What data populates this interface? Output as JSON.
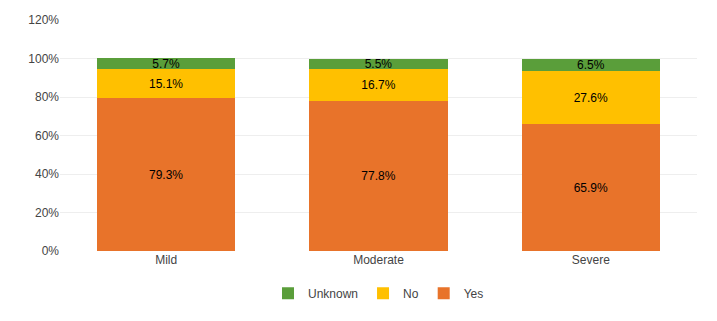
{
  "chart_data": {
    "type": "bar",
    "categories": [
      "Mild",
      "Moderate",
      "Severe"
    ],
    "series": [
      {
        "name": "Yes",
        "color": "#E8732A",
        "values": [
          79.3,
          77.8,
          65.9
        ],
        "value_labels": [
          "79.3%",
          "77.8%",
          "65.9%"
        ]
      },
      {
        "name": "No",
        "color": "#FFC000",
        "values": [
          15.1,
          16.7,
          27.6
        ],
        "value_labels": [
          "15.1%",
          "16.7%",
          "27.6%"
        ]
      },
      {
        "name": "Unknown",
        "color": "#5A9E3A",
        "values": [
          5.7,
          5.5,
          6.5
        ],
        "value_labels": [
          "5.7%",
          "5.5%",
          "6.5%"
        ]
      }
    ],
    "ylim": [
      0,
      120
    ],
    "yticks": [
      {
        "value": 0,
        "label": "0%"
      },
      {
        "value": 20,
        "label": "20%"
      },
      {
        "value": 40,
        "label": "40%"
      },
      {
        "value": 60,
        "label": "60%"
      },
      {
        "value": 80,
        "label": "80%"
      },
      {
        "value": 100,
        "label": "100%"
      },
      {
        "value": 120,
        "label": "120%"
      }
    ],
    "stacked": true,
    "data_labels": true,
    "grid": true,
    "legend": "bottom"
  }
}
